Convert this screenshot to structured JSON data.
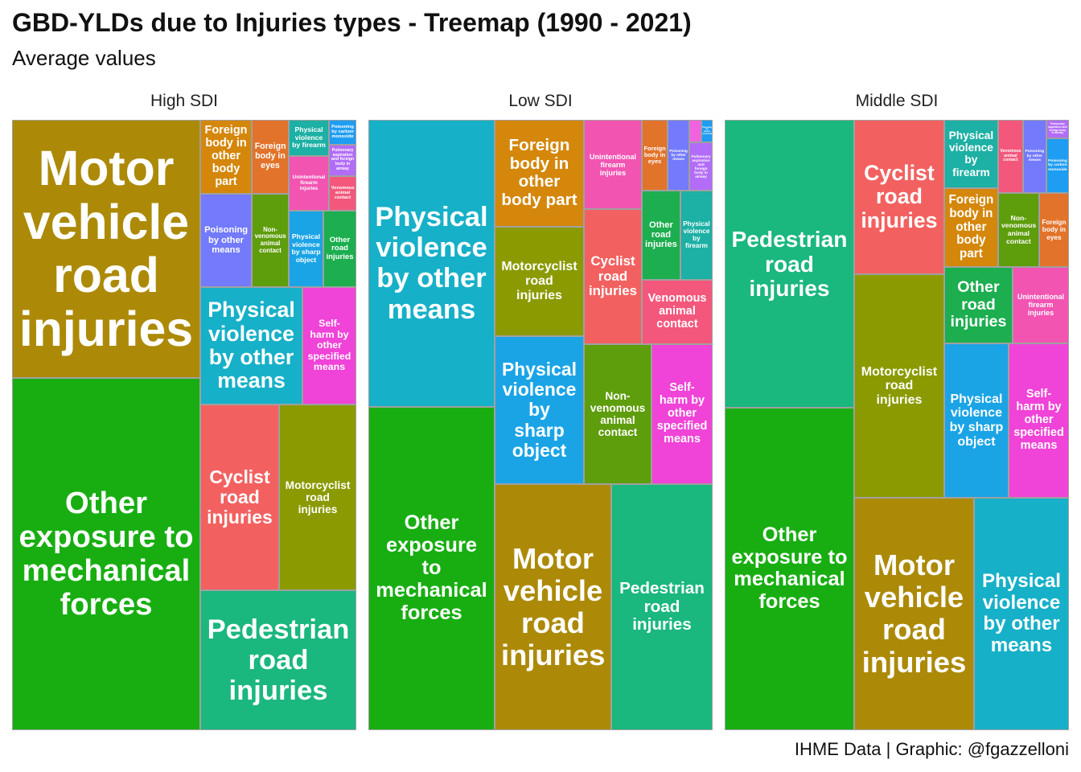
{
  "chart_data": {
    "type": "treemap",
    "title": "GBD-YLDs due to Injuries types - Treemap (1990 - 2021)",
    "subtitle": "Average values",
    "caption": "IHME Data | Graphic: @fgazzelloni",
    "facets": [
      {
        "name": "High SDI",
        "tiles": [
          {
            "name": "Other exposure to mechanical forces",
            "color": "#18AE12",
            "value": 31.55
          },
          {
            "name": "Motor vehicle road injuries",
            "color": "#AC8A08",
            "value": 23.12
          },
          {
            "name": "Pedestrian road injuries",
            "color": "#1AB77E",
            "value": 10.39
          },
          {
            "name": "Cyclist road injuries",
            "color": "#F26160",
            "value": 6.97
          },
          {
            "name": "Motorcyclist road injuries",
            "color": "#8A9A00",
            "value": 6.83
          },
          {
            "name": "Physical violence by other means",
            "color": "#16B0C8",
            "value": 5.71
          },
          {
            "name": "Self-harm by other specified means",
            "color": "#F043D7",
            "value": 3.01
          },
          {
            "name": "Poisoning by other means",
            "color": "#737AFC",
            "value": 2.29
          },
          {
            "name": "Foreign body in other body part",
            "color": "#D4870B",
            "value": 1.81
          },
          {
            "name": "Non-venomous animal contact",
            "color": "#5E9D0C",
            "value": 1.64
          },
          {
            "name": "Foreign body in eyes",
            "color": "#E2732A",
            "value": 1.3
          },
          {
            "name": "Physical violence by sharp object",
            "color": "#1AA4E6",
            "value": 1.26
          },
          {
            "name": "Other road injuries",
            "color": "#1CAE4F",
            "value": 1.2
          },
          {
            "name": "Unintentional firearm injuries",
            "color": "#F254B2",
            "value": 1.05
          },
          {
            "name": "Physical violence by firearm",
            "color": "#1DB0A4",
            "value": 0.69
          },
          {
            "name": "Venomous animal contact",
            "color": "#F4577C",
            "value": 0.45
          },
          {
            "name": "Pulmonary aspiration and foreign body in airway",
            "color": "#B26CF8",
            "value": 0.41
          },
          {
            "name": "Poisoning by carbon monoxide",
            "color": "#1E9DF2",
            "value": 0.32
          }
        ]
      },
      {
        "name": "Low SDI",
        "tiles": [
          {
            "name": "Other exposure to mechanical forces",
            "color": "#18AE12",
            "value": 19.43
          },
          {
            "name": "Physical violence by other means",
            "color": "#16B0C8",
            "value": 17.25
          },
          {
            "name": "Motor vehicle road injuries",
            "color": "#AC8A08",
            "value": 13.66
          },
          {
            "name": "Pedestrian road injuries",
            "color": "#1AB77E",
            "value": 11.87
          },
          {
            "name": "Physical violence by sharp object",
            "color": "#1AA4E6",
            "value": 6.29
          },
          {
            "name": "Motorcyclist road injuries",
            "color": "#8A9A00",
            "value": 4.65
          },
          {
            "name": "Foreign body in other body part",
            "color": "#D4870B",
            "value": 4.54
          },
          {
            "name": "Non-venomous animal contact",
            "color": "#5E9D0C",
            "value": 4.5
          },
          {
            "name": "Self-harm by other specified means",
            "color": "#F043D7",
            "value": 4.07
          },
          {
            "name": "Cyclist road injuries",
            "color": "#F26160",
            "value": 3.72
          },
          {
            "name": "Unintentional firearm injuries",
            "color": "#F254B2",
            "value": 2.46
          },
          {
            "name": "Venomous animal contact",
            "color": "#F4577C",
            "value": 2.17
          },
          {
            "name": "Other road injuries",
            "color": "#1CAE4F",
            "value": 1.64
          },
          {
            "name": "Physical violence by firearm",
            "color": "#1DB0A4",
            "value": 1.37
          },
          {
            "name": "Foreign body in eyes",
            "color": "#E2732A",
            "value": 0.87
          },
          {
            "name": "Poisoning by other means",
            "color": "#737AFC",
            "value": 0.73
          },
          {
            "name": "Pulmonary aspiration and foreign body in airway",
            "color": "#B26CF8",
            "value": 0.53
          },
          {
            "name": null,
            "color": "#F062E0",
            "value": 0.13
          },
          {
            "name": "Poisoning by carbon monoxide",
            "color": "#1E9DF2",
            "value": 0.12
          }
        ]
      },
      {
        "name": "Middle SDI",
        "tiles": [
          {
            "name": "Other exposure to mechanical forces",
            "color": "#18AE12",
            "value": 19.87
          },
          {
            "name": "Pedestrian road injuries",
            "color": "#1AB77E",
            "value": 17.74
          },
          {
            "name": "Motor vehicle road injuries",
            "color": "#AC8A08",
            "value": 13.26
          },
          {
            "name": "Physical violence by other means",
            "color": "#16B0C8",
            "value": 10.5
          },
          {
            "name": "Motorcyclist road injuries",
            "color": "#8A9A00",
            "value": 9.58
          },
          {
            "name": "Cyclist road injuries",
            "color": "#F26160",
            "value": 6.62
          },
          {
            "name": "Physical violence by sharp object",
            "color": "#1AA4E6",
            "value": 4.73
          },
          {
            "name": "Self-harm by other specified means",
            "color": "#F043D7",
            "value": 4.43
          },
          {
            "name": "Other road injuries",
            "color": "#1CAE4F",
            "value": 2.49
          },
          {
            "name": "Unintentional firearm injuries",
            "color": "#F254B2",
            "value": 2.05
          },
          {
            "name": "Foreign body in other body part",
            "color": "#D4870B",
            "value": 2.02
          },
          {
            "name": "Physical violence by firearm",
            "color": "#1DB0A4",
            "value": 1.75
          },
          {
            "name": "Non-venomous animal contact",
            "color": "#5E9D0C",
            "value": 1.44
          },
          {
            "name": "Foreign body in eyes",
            "color": "#E2732A",
            "value": 1.05
          },
          {
            "name": "Venomous animal contact",
            "color": "#F4577C",
            "value": 0.87
          },
          {
            "name": "Poisoning by other means",
            "color": "#737AFC",
            "value": 0.81
          },
          {
            "name": "Poisoning by carbon monoxide",
            "color": "#1E9DF2",
            "value": 0.59
          },
          {
            "name": "Pulmonary aspiration and foreign body in airway",
            "color": "#B26CF8",
            "value": 0.2
          }
        ]
      }
    ]
  }
}
